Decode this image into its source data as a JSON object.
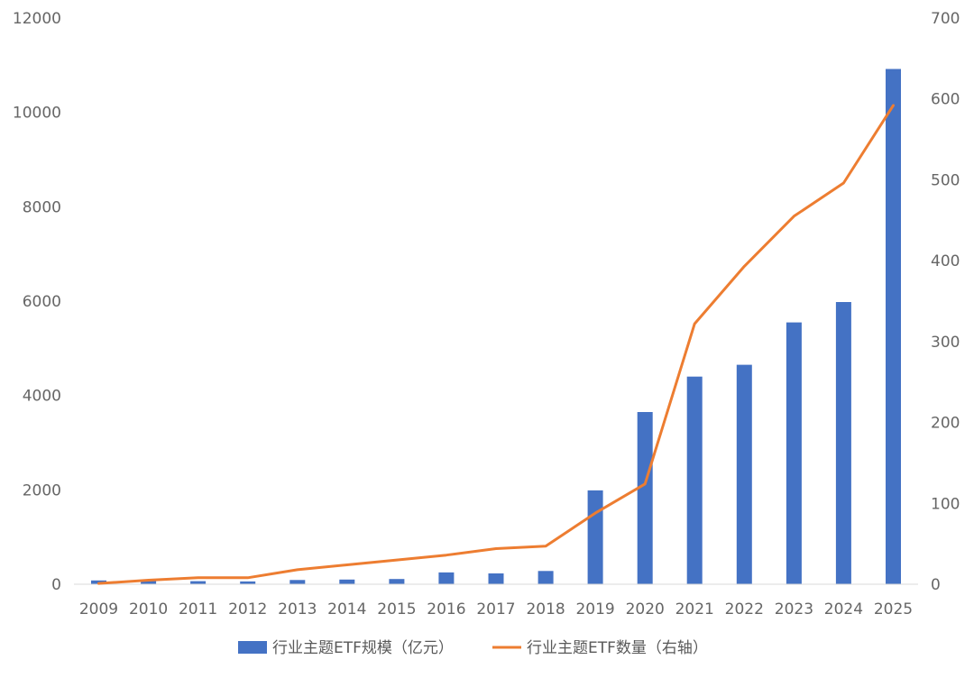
{
  "chart_data": {
    "type": "bar+line",
    "categories": [
      "2009",
      "2010",
      "2011",
      "2012",
      "2013",
      "2014",
      "2015",
      "2016",
      "2017",
      "2018",
      "2019",
      "2020",
      "2021",
      "2022",
      "2023",
      "2024",
      "2025"
    ],
    "series": [
      {
        "name": "行业主题ETF规模（亿元）",
        "type": "bar",
        "axis": "left",
        "color": "#4472C4",
        "values": [
          80,
          70,
          65,
          60,
          90,
          100,
          110,
          250,
          230,
          280,
          1990,
          3650,
          4400,
          4650,
          5550,
          5980,
          10920
        ]
      },
      {
        "name": "行业主题ETF数量（右轴）",
        "type": "line",
        "axis": "right",
        "color": "#ED7D31",
        "values": [
          1,
          5,
          8,
          8,
          18,
          24,
          30,
          36,
          44,
          47,
          88,
          124,
          322,
          393,
          455,
          496,
          592
        ]
      }
    ],
    "y_left": {
      "min": 0,
      "max": 12000,
      "ticks": [
        "0",
        "2000",
        "4000",
        "6000",
        "8000",
        "10000",
        "12000"
      ]
    },
    "y_right": {
      "min": 0,
      "max": 700,
      "ticks": [
        "0",
        "100",
        "200",
        "300",
        "400",
        "500",
        "600",
        "700"
      ]
    },
    "grid": false,
    "legend_position": "bottom"
  }
}
